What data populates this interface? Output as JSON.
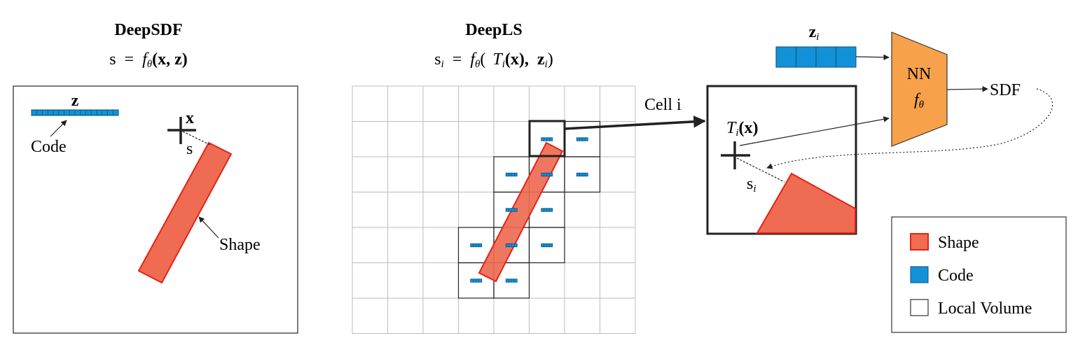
{
  "deepsdf": {
    "title": "DeepSDF",
    "formula_lhs": "s",
    "formula_eq": "=",
    "formula_f": "f",
    "formula_theta": "θ",
    "formula_args": "(x, z)",
    "code_symbol": "z",
    "code_label": "Code",
    "point_label": "x",
    "distance_label": "s",
    "shape_label": "Shape"
  },
  "deepls": {
    "title": "DeepLS",
    "formula_lhs": "s",
    "formula_lhs_sub": "i",
    "formula_eq": "=",
    "formula_f": "f",
    "formula_theta": "θ",
    "formula_open": "(",
    "formula_T": "T",
    "formula_T_sub": "i",
    "formula_x": "(x),",
    "formula_z": "z",
    "formula_z_sub": "i",
    "formula_close": ")"
  },
  "detail": {
    "cell_label": "Cell i",
    "transform_T": "T",
    "transform_sub": "i",
    "transform_arg": "(x)",
    "distance_label": "s",
    "distance_sub": "i",
    "code_symbol": "z",
    "code_sub": "i",
    "nn_label": "NN",
    "nn_f": "f",
    "nn_theta": "θ",
    "output_label": "SDF"
  },
  "legend": {
    "items": [
      {
        "label": "Shape",
        "color": "#ef6b51",
        "border": "#e2231a"
      },
      {
        "label": "Code",
        "color": "#1192d8",
        "border": "#0a4f7a"
      },
      {
        "label": "Local Volume",
        "color": "#ffffff",
        "border": "#333333"
      }
    ]
  },
  "colors": {
    "shape_fill": "#ef6b51",
    "shape_stroke": "#e2231a",
    "code_fill": "#1192d8",
    "nn_fill": "#f7a24a",
    "grid": "#bdbdbd"
  }
}
